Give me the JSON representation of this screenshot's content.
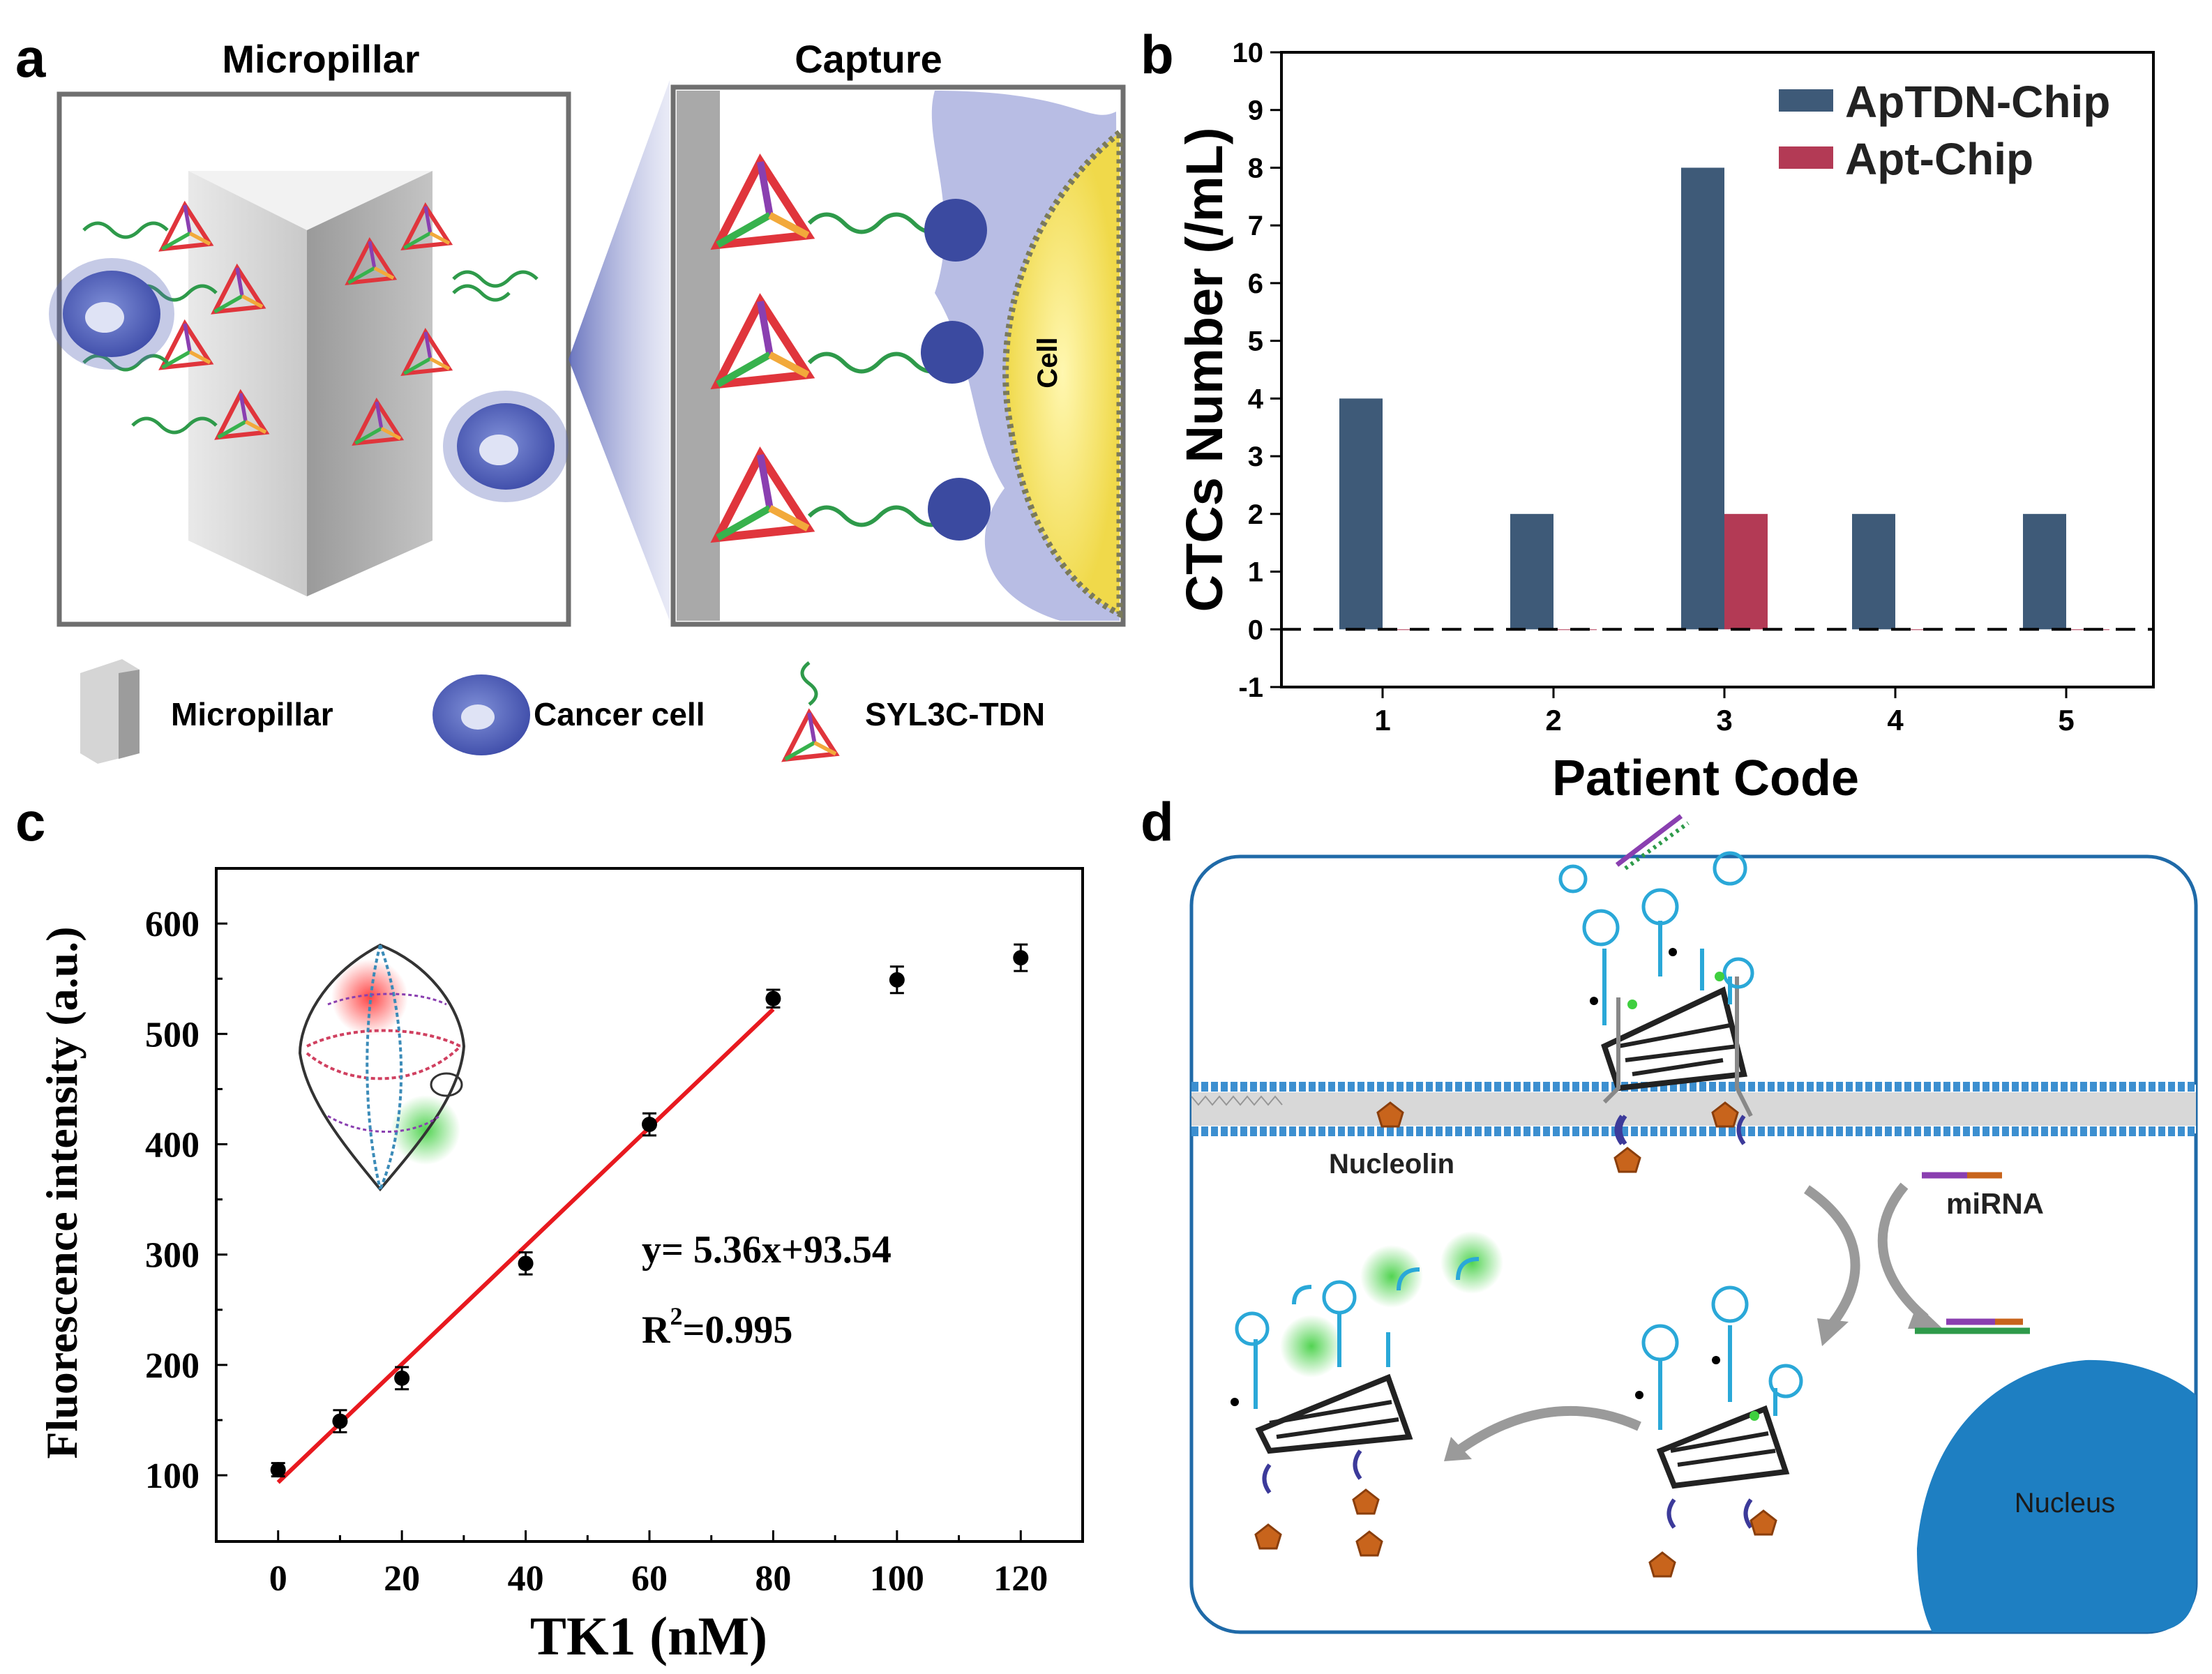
{
  "panel_a": {
    "letter": "a",
    "title_left": "Micropillar",
    "title_right": "Capture",
    "cell_label": "Cell",
    "legend": [
      "Micropillar",
      "Cancer cell",
      "SYL3C-TDN"
    ]
  },
  "panel_d": {
    "letter": "d",
    "labels": {
      "nucleolin": "Nucleolin",
      "mirna": "miRNA",
      "nucleus": "Nucleus"
    }
  },
  "chart_data": [
    {
      "panel": "b",
      "type": "bar",
      "categories": [
        "1",
        "2",
        "3",
        "4",
        "5"
      ],
      "series": [
        {
          "name": "ApTDN-Chip",
          "values": [
            4,
            2,
            8,
            2,
            2
          ],
          "color": "#3e5a78"
        },
        {
          "name": "Apt-Chip",
          "values": [
            0,
            0,
            2,
            0,
            0
          ],
          "color": "#b33a55"
        }
      ],
      "xlabel": "Patient Code",
      "ylabel": "CTCs Number (/mL)",
      "ylim": [
        -1,
        10
      ],
      "yticks": [
        "-1",
        "0",
        "1",
        "2",
        "3",
        "4",
        "5",
        "6",
        "7",
        "8",
        "9",
        "10"
      ],
      "reference_line": 0,
      "legend_position": "top-right"
    },
    {
      "panel": "c",
      "type": "scatter",
      "x": [
        0,
        10,
        20,
        40,
        60,
        80,
        100,
        120
      ],
      "y": [
        105,
        149,
        188,
        292,
        418,
        532,
        549,
        569
      ],
      "yerr": [
        6,
        10,
        10,
        10,
        10,
        8,
        12,
        12
      ],
      "fit": {
        "slope": 5.36,
        "intercept": 93.54,
        "x_range": [
          0,
          80
        ],
        "color": "#e8191f"
      },
      "equation": "y= 5.36x+93.54",
      "r2_label": "R",
      "r2_sup": "2",
      "r2_value": "=0.995",
      "xlabel": "TK1 (nM)",
      "ylabel": "Fluorescence intensity (a.u.)",
      "xlim": [
        -10,
        130
      ],
      "ylim": [
        40,
        650
      ],
      "xticks": [
        "0",
        "20",
        "40",
        "60",
        "80",
        "100",
        "120"
      ],
      "yticks": [
        "100",
        "200",
        "300",
        "400",
        "500",
        "600"
      ]
    }
  ]
}
